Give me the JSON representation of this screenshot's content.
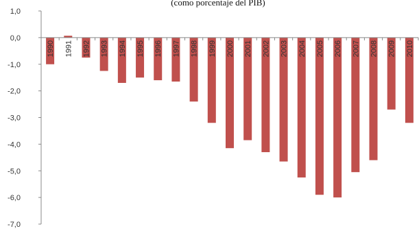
{
  "chart_data": {
    "type": "bar",
    "subtitle": "(como porcentaje del PIB)",
    "categories": [
      "1990",
      "1991",
      "1992",
      "1993",
      "1994",
      "1995",
      "1996",
      "1997",
      "1998",
      "1999",
      "2000",
      "2001",
      "2002",
      "2003",
      "2004",
      "2005",
      "2006",
      "2007",
      "2008",
      "2009",
      "2010"
    ],
    "values": [
      -1.0,
      0.07,
      -0.75,
      -1.25,
      -1.7,
      -1.5,
      -1.6,
      -1.65,
      -2.4,
      -3.2,
      -4.15,
      -3.85,
      -4.3,
      -4.65,
      -5.25,
      -5.9,
      -6.0,
      -5.05,
      -4.6,
      -2.7,
      -3.2
    ],
    "ylim": [
      -7,
      1
    ],
    "yticks": [
      1,
      0,
      -1,
      -2,
      -3,
      -4,
      -5,
      -6,
      -7
    ],
    "ytick_labels": [
      "1,0",
      "0,0",
      "-1,0",
      "-2,0",
      "-3,0",
      "-4,0",
      "-5,0",
      "-6,0",
      "-7,0"
    ],
    "bar_color": "#C0504D",
    "axis_color": "#888888",
    "grid": false
  }
}
